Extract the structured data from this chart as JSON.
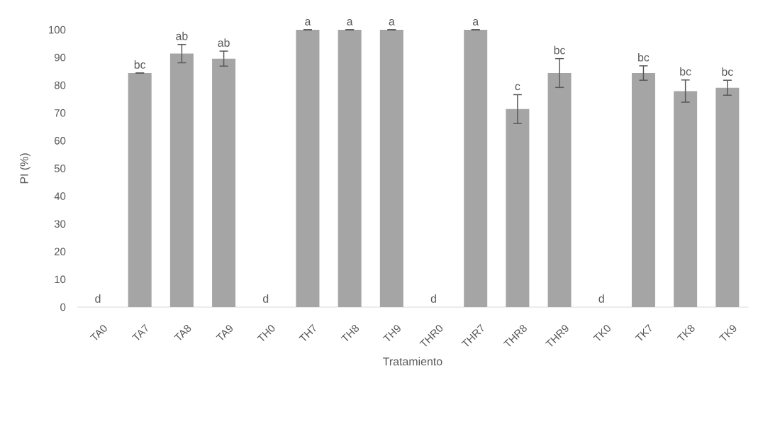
{
  "chart_data": {
    "type": "bar",
    "xlabel": "Tratamiento",
    "ylabel": "PI (%)",
    "categories": [
      "TA0",
      "TA7",
      "TA8",
      "TA9",
      "TH0",
      "TH7",
      "TH8",
      "TH9",
      "THR0",
      "THR7",
      "THR8",
      "THR9",
      "TK0",
      "TK7",
      "TK8",
      "TK9"
    ],
    "values": [
      0,
      84.4,
      91.4,
      89.6,
      0,
      100,
      100,
      100,
      0,
      100,
      71.4,
      84.4,
      0,
      84.4,
      77.9,
      79.1
    ],
    "errors": [
      null,
      0,
      3.3,
      2.7,
      null,
      0,
      0,
      0,
      null,
      0,
      5.2,
      5.2,
      null,
      2.6,
      4,
      2.7
    ],
    "color": "#a5a5a5",
    "ylim": [
      0,
      100
    ],
    "yticks": [
      0,
      10,
      20,
      30,
      40,
      50,
      60,
      70,
      80,
      90,
      100
    ],
    "annotations": [
      {
        "text": "d",
        "x": "TA0",
        "y": 0
      },
      {
        "text": "bc",
        "x": "TA7",
        "y": 84.4
      },
      {
        "text": "ab",
        "x": "TA8",
        "y": 94.7
      },
      {
        "text": "ab",
        "x": "TA9",
        "y": 92.3
      },
      {
        "text": "d",
        "x": "TH0",
        "y": 0
      },
      {
        "text": "a",
        "x": "TH7",
        "y": 100
      },
      {
        "text": "a",
        "x": "TH8",
        "y": 100
      },
      {
        "text": "a",
        "x": "TH9",
        "y": 100
      },
      {
        "text": "d",
        "x": "THR0",
        "y": 0
      },
      {
        "text": "a",
        "x": "THR7",
        "y": 100
      },
      {
        "text": "c",
        "x": "THR8",
        "y": 76.6
      },
      {
        "text": "bc",
        "x": "THR9",
        "y": 89.6
      },
      {
        "text": "d",
        "x": "TK0",
        "y": 0
      },
      {
        "text": "bc",
        "x": "TK7",
        "y": 87.0
      },
      {
        "text": "bc",
        "x": "TK8",
        "y": 81.9
      },
      {
        "text": "bc",
        "x": "TK9",
        "y": 81.8
      }
    ]
  }
}
